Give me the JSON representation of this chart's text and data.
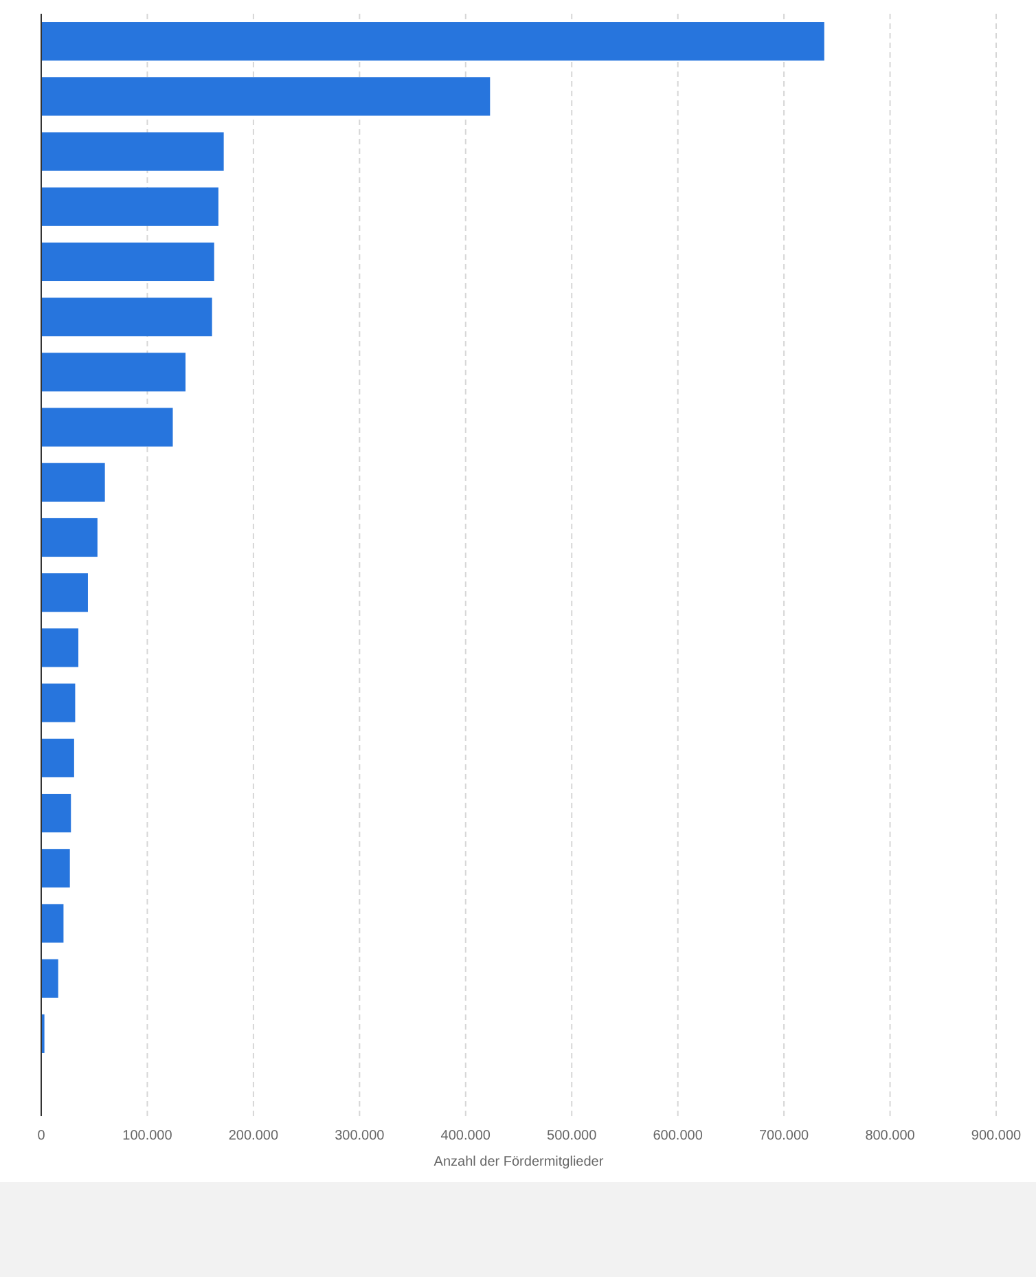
{
  "chart_data": {
    "type": "bar",
    "orientation": "horizontal",
    "xlabel": "Anzahl der Fördermitglieder",
    "categories": [
      null,
      null,
      null,
      null,
      null,
      null,
      null,
      null,
      null,
      null,
      null,
      null,
      null,
      null,
      null,
      null,
      null,
      null,
      null
    ],
    "values": [
      738000,
      423000,
      172000,
      167000,
      163000,
      161000,
      136000,
      124000,
      60000,
      53000,
      44000,
      35000,
      32000,
      31000,
      28000,
      27000,
      21000,
      16000,
      3000
    ],
    "color": "#2775dd",
    "xlim": [
      0,
      900000
    ],
    "xticks": [
      {
        "value": 0,
        "label": "0"
      },
      {
        "value": 100000,
        "label": "100.000"
      },
      {
        "value": 200000,
        "label": "200.000"
      },
      {
        "value": 300000,
        "label": "300.000"
      },
      {
        "value": 400000,
        "label": "400.000"
      },
      {
        "value": 500000,
        "label": "500.000"
      },
      {
        "value": 600000,
        "label": "600.000"
      },
      {
        "value": 700000,
        "label": "700.000"
      },
      {
        "value": 800000,
        "label": "800.000"
      },
      {
        "value": 900000,
        "label": "900.000"
      }
    ],
    "grid": "x"
  }
}
